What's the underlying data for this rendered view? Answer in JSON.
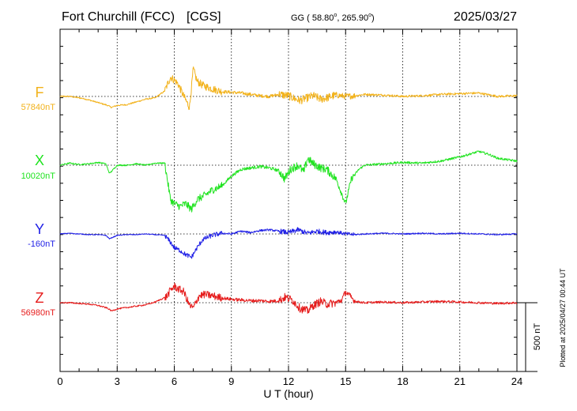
{
  "header": {
    "station": "Fort Churchill (FCC)",
    "network": "[CGS]",
    "coords_prefix": "GG ( 58.80",
    "coords_mid": ", 265.90",
    "coords_suffix": ")",
    "degree_mark": "o",
    "date": "2025/03/27"
  },
  "plotted_note": "Plotted at 2025/04/27 00:44 UT",
  "chart_data": {
    "type": "line",
    "title": "Fort Churchill (FCC)  [CGS]",
    "xlabel": "U T (hour)",
    "xlim": [
      0,
      24
    ],
    "x_ticks": [
      "0",
      "3",
      "6",
      "9",
      "12",
      "15",
      "18",
      "21",
      "24"
    ],
    "grid": true,
    "scale_bar": {
      "label": "500 nT",
      "value": 500
    },
    "series": [
      {
        "name": "F",
        "baseline_label": "57840nT",
        "color": "#f2b21b",
        "x": [
          0,
          0.5,
          1,
          1.2,
          1.5,
          2,
          2.5,
          2.7,
          3,
          3.5,
          4,
          4.5,
          5,
          5.3,
          5.5,
          5.8,
          6,
          6.2,
          6.5,
          6.8,
          7,
          7.2,
          7.5,
          8,
          8.5,
          9,
          9.5,
          10,
          10.5,
          11,
          11.5,
          12,
          12.3,
          12.6,
          13,
          13.3,
          13.7,
          14,
          14.5,
          15,
          15.5,
          16,
          17,
          18,
          19,
          20,
          21,
          22,
          23,
          24
        ],
        "y": [
          0,
          0,
          -10,
          -15,
          -25,
          -45,
          -65,
          -80,
          -65,
          -60,
          -40,
          -20,
          -10,
          20,
          40,
          140,
          120,
          90,
          0,
          -80,
          200,
          110,
          80,
          55,
          35,
          30,
          25,
          15,
          5,
          0,
          15,
          5,
          -15,
          -30,
          -10,
          5,
          -20,
          -10,
          10,
          0,
          5,
          15,
          10,
          0,
          5,
          15,
          20,
          25,
          0,
          5
        ]
      },
      {
        "name": "X",
        "baseline_label": "10020nT",
        "color": "#1ee31e",
        "x": [
          0,
          0.5,
          1,
          1.5,
          2,
          2.4,
          2.6,
          3,
          3.5,
          4,
          4.5,
          5,
          5.5,
          5.8,
          6,
          6.3,
          6.6,
          6.9,
          7.2,
          7.6,
          8,
          8.5,
          9,
          9.5,
          10,
          10.5,
          11,
          11.5,
          11.8,
          12.1,
          12.5,
          12.8,
          13,
          13.3,
          13.7,
          14,
          14.5,
          15,
          15.3,
          15.7,
          16,
          17,
          18,
          19,
          20,
          21,
          22,
          22.5,
          23,
          24
        ],
        "y": [
          0,
          15,
          5,
          10,
          20,
          10,
          -60,
          0,
          0,
          10,
          0,
          15,
          15,
          -250,
          -280,
          -300,
          -280,
          -320,
          -250,
          -220,
          -180,
          -150,
          -80,
          -30,
          -20,
          -10,
          -20,
          -40,
          -100,
          -30,
          0,
          -50,
          50,
          10,
          -20,
          -30,
          -100,
          -280,
          -100,
          -30,
          0,
          10,
          20,
          15,
          30,
          60,
          100,
          80,
          50,
          30
        ]
      },
      {
        "name": "Y",
        "baseline_label": "-160nT",
        "color": "#1f1fe6",
        "x": [
          0,
          0.5,
          1,
          1.5,
          2,
          2.4,
          2.6,
          3,
          3.5,
          4,
          4.5,
          5,
          5.5,
          5.8,
          6,
          6.3,
          6.6,
          6.9,
          7.2,
          7.5,
          8,
          8.5,
          9,
          9.5,
          10,
          10.5,
          11,
          11.5,
          12,
          12.5,
          13,
          13.5,
          14,
          14.5,
          15,
          15.5,
          16,
          17,
          18,
          19,
          20,
          21,
          22,
          23,
          24
        ],
        "y": [
          0,
          5,
          0,
          -5,
          -5,
          -10,
          -35,
          -10,
          -5,
          -5,
          0,
          -5,
          -10,
          -60,
          -100,
          -120,
          -150,
          -170,
          -100,
          -40,
          -10,
          5,
          0,
          20,
          10,
          25,
          30,
          20,
          10,
          30,
          5,
          20,
          10,
          15,
          0,
          -5,
          0,
          5,
          0,
          5,
          0,
          5,
          0,
          -5,
          0
        ]
      },
      {
        "name": "Z",
        "baseline_label": "56980nT",
        "color": "#e61c1c",
        "x": [
          0,
          0.5,
          1,
          1.5,
          2,
          2.5,
          2.7,
          3,
          3.5,
          4,
          4.5,
          5,
          5.3,
          5.6,
          5.8,
          6,
          6.2,
          6.5,
          6.8,
          7,
          7.3,
          7.6,
          8,
          8.5,
          9,
          9.5,
          10,
          10.5,
          11,
          11.5,
          11.8,
          12.2,
          12.6,
          13,
          13.3,
          13.7,
          14,
          14.5,
          14.8,
          15,
          15.5,
          16,
          17,
          18,
          19,
          20,
          21,
          22,
          23,
          24
        ],
        "y": [
          0,
          0,
          -5,
          -10,
          -20,
          -40,
          -60,
          -45,
          -35,
          -25,
          -15,
          5,
          25,
          45,
          90,
          120,
          100,
          80,
          -20,
          -40,
          50,
          60,
          50,
          35,
          25,
          20,
          15,
          15,
          10,
          15,
          40,
          20,
          -40,
          -60,
          -20,
          10,
          -10,
          0,
          20,
          80,
          10,
          0,
          5,
          0,
          5,
          10,
          5,
          0,
          -5,
          0
        ]
      }
    ]
  }
}
